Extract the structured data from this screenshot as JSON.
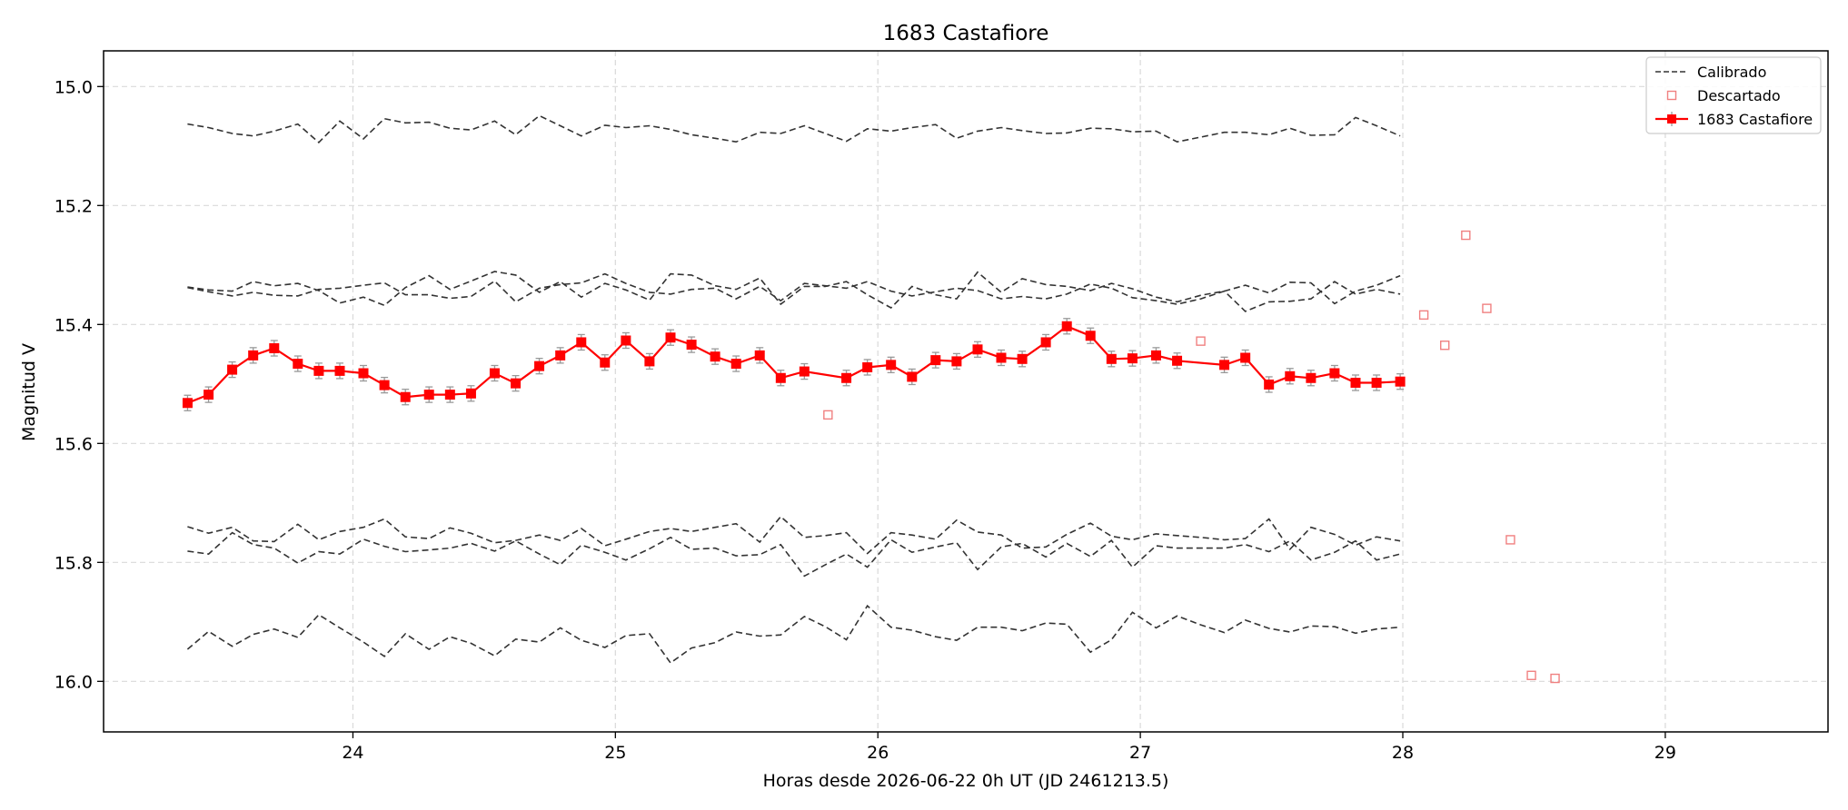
{
  "chart_data": {
    "type": "line",
    "title": "1683 Castafiore",
    "xlabel": "Horas desde 2026-06-22 0h UT (JD 2461213.5)",
    "ylabel": "Magnitud V",
    "xlim": [
      23.05,
      29.62
    ],
    "ylim": [
      16.085,
      14.94
    ],
    "y_inverted": true,
    "grid": true,
    "legend_position": "upper right",
    "xticks": [
      24,
      25,
      26,
      27,
      28,
      29
    ],
    "yticks": [
      15.0,
      15.2,
      15.4,
      15.6,
      15.8,
      16.0
    ],
    "ytick_labels": [
      "15.0",
      "15.2",
      "15.4",
      "15.6",
      "15.8",
      "16.0"
    ],
    "legend": [
      {
        "label": "Calibrado",
        "style": "dashed",
        "color": "#333333"
      },
      {
        "label": "Descartado",
        "style": "open-square",
        "color": "#f08080"
      },
      {
        "label": "1683 Castafiore",
        "style": "line-square",
        "color": "#ff0000"
      }
    ],
    "colors": {
      "target": "#ff0000",
      "calibrated": "#333333",
      "discarded": "#f08080",
      "errorbar": "#999999"
    },
    "target": {
      "name": "1683 Castafiore",
      "x": [
        23.37,
        23.45,
        23.54,
        23.62,
        23.7,
        23.79,
        23.87,
        23.95,
        24.04,
        24.12,
        24.2,
        24.29,
        24.37,
        24.45,
        24.54,
        24.62,
        24.71,
        24.79,
        24.87,
        24.96,
        25.04,
        25.13,
        25.21,
        25.29,
        25.38,
        25.46,
        25.55,
        25.63,
        25.72,
        25.88,
        25.96,
        26.05,
        26.13,
        26.22,
        26.3,
        26.38,
        26.47,
        26.55,
        26.64,
        26.72,
        26.81,
        26.89,
        26.97,
        27.06,
        27.14,
        27.32,
        27.4,
        27.49,
        27.57,
        27.65,
        27.74,
        27.82,
        27.9,
        27.99
      ],
      "y": [
        15.532,
        15.518,
        15.476,
        15.452,
        15.44,
        15.466,
        15.478,
        15.478,
        15.482,
        15.502,
        15.522,
        15.518,
        15.518,
        15.516,
        15.482,
        15.499,
        15.47,
        15.452,
        15.43,
        15.464,
        15.427,
        15.462,
        15.422,
        15.434,
        15.454,
        15.466,
        15.452,
        15.49,
        15.479,
        15.49,
        15.472,
        15.468,
        15.488,
        15.46,
        15.462,
        15.442,
        15.456,
        15.458,
        15.43,
        15.403,
        15.419,
        15.458,
        15.457,
        15.452,
        15.461,
        15.468,
        15.456,
        15.501,
        15.487,
        15.49,
        15.482,
        15.498,
        15.498,
        15.496
      ],
      "yerr": 0.013
    },
    "discarded": {
      "name": "Descartado",
      "x": [
        25.81,
        27.23,
        28.08,
        28.16,
        28.24,
        28.32,
        28.41,
        28.49,
        28.58
      ],
      "y": [
        15.552,
        15.428,
        15.384,
        15.435,
        15.25,
        15.373,
        15.762,
        15.99,
        15.995
      ]
    },
    "comparison": [
      {
        "name": "Calibrado",
        "x": [
          23.37,
          23.45,
          23.54,
          23.62,
          23.7,
          23.79,
          23.87,
          23.95,
          24.04,
          24.12,
          24.2,
          24.29,
          24.37,
          24.45,
          24.54,
          24.62,
          24.71,
          24.79,
          24.87,
          24.96,
          25.04,
          25.13,
          25.21,
          25.29,
          25.38,
          25.46,
          25.55,
          25.63,
          25.72,
          25.8,
          25.88,
          25.96,
          26.05,
          26.13,
          26.22,
          26.3,
          26.38,
          26.47,
          26.55,
          26.64,
          26.72,
          26.81,
          26.89,
          26.97,
          27.06,
          27.14,
          27.23,
          27.32,
          27.4,
          27.49,
          27.57,
          27.65,
          27.74,
          27.82,
          27.9,
          27.99
        ],
        "y": [
          15.063,
          15.069,
          15.079,
          15.083,
          15.075,
          15.063,
          15.094,
          15.058,
          15.088,
          15.054,
          15.061,
          15.06,
          15.07,
          15.073,
          15.058,
          15.081,
          15.049,
          15.066,
          15.083,
          15.065,
          15.069,
          15.066,
          15.072,
          15.081,
          15.087,
          15.093,
          15.077,
          15.079,
          15.066,
          15.079,
          15.092,
          15.071,
          15.075,
          15.069,
          15.064,
          15.087,
          15.075,
          15.069,
          15.074,
          15.079,
          15.078,
          15.07,
          15.071,
          15.076,
          15.075,
          15.093,
          15.085,
          15.077,
          15.077,
          15.081,
          15.07,
          15.082,
          15.081,
          15.052,
          15.066,
          15.083
        ]
      },
      {
        "name": "Calibrado",
        "x": [
          23.37,
          23.45,
          23.54,
          23.62,
          23.7,
          23.79,
          23.87,
          23.95,
          24.04,
          24.12,
          24.2,
          24.29,
          24.37,
          24.45,
          24.54,
          24.62,
          24.71,
          24.79,
          24.87,
          24.96,
          25.04,
          25.13,
          25.21,
          25.29,
          25.38,
          25.46,
          25.55,
          25.63,
          25.72,
          25.8,
          25.88,
          25.96,
          26.05,
          26.13,
          26.22,
          26.3,
          26.38,
          26.47,
          26.55,
          26.64,
          26.72,
          26.81,
          26.89,
          26.97,
          27.06,
          27.14,
          27.23,
          27.32,
          27.4,
          27.49,
          27.57,
          27.65,
          27.74,
          27.82,
          27.9,
          27.99
        ],
        "y": [
          15.337,
          15.342,
          15.344,
          15.328,
          15.335,
          15.331,
          15.343,
          15.364,
          15.354,
          15.368,
          15.338,
          15.318,
          15.341,
          15.327,
          15.311,
          15.317,
          15.346,
          15.328,
          15.354,
          15.331,
          15.342,
          15.359,
          15.315,
          15.317,
          15.335,
          15.341,
          15.322,
          15.366,
          15.336,
          15.336,
          15.328,
          15.35,
          15.372,
          15.336,
          15.35,
          15.357,
          15.312,
          15.346,
          15.323,
          15.333,
          15.336,
          15.343,
          15.331,
          15.34,
          15.354,
          15.362,
          15.351,
          15.344,
          15.334,
          15.347,
          15.329,
          15.33,
          15.365,
          15.344,
          15.334,
          15.318
        ]
      },
      {
        "name": "Calibrado",
        "x": [
          23.37,
          23.45,
          23.54,
          23.62,
          23.7,
          23.79,
          23.87,
          23.95,
          24.04,
          24.12,
          24.2,
          24.29,
          24.37,
          24.45,
          24.54,
          24.62,
          24.71,
          24.79,
          24.87,
          24.96,
          25.04,
          25.13,
          25.21,
          25.29,
          25.38,
          25.46,
          25.55,
          25.63,
          25.72,
          25.8,
          25.88,
          25.96,
          26.05,
          26.13,
          26.22,
          26.3,
          26.38,
          26.47,
          26.55,
          26.64,
          26.72,
          26.81,
          26.89,
          26.97,
          27.06,
          27.14,
          27.23,
          27.32,
          27.4,
          27.49,
          27.57,
          27.65,
          27.74,
          27.82,
          27.9,
          27.99
        ],
        "y": [
          15.338,
          15.345,
          15.352,
          15.346,
          15.351,
          15.352,
          15.341,
          15.339,
          15.334,
          15.33,
          15.35,
          15.35,
          15.356,
          15.353,
          15.327,
          15.362,
          15.339,
          15.333,
          15.33,
          15.315,
          15.331,
          15.346,
          15.349,
          15.341,
          15.339,
          15.357,
          15.336,
          15.36,
          15.331,
          15.335,
          15.339,
          15.328,
          15.344,
          15.352,
          15.345,
          15.339,
          15.343,
          15.357,
          15.353,
          15.357,
          15.349,
          15.332,
          15.339,
          15.355,
          15.36,
          15.366,
          15.357,
          15.344,
          15.378,
          15.362,
          15.361,
          15.357,
          15.328,
          15.349,
          15.341,
          15.349
        ]
      },
      {
        "name": "Calibrado",
        "x": [
          23.37,
          23.45,
          23.54,
          23.62,
          23.7,
          23.79,
          23.87,
          23.95,
          24.04,
          24.12,
          24.2,
          24.29,
          24.37,
          24.45,
          24.54,
          24.62,
          24.71,
          24.79,
          24.87,
          24.96,
          25.04,
          25.13,
          25.21,
          25.29,
          25.38,
          25.46,
          25.55,
          25.63,
          25.72,
          25.8,
          25.88,
          25.96,
          26.05,
          26.13,
          26.22,
          26.3,
          26.38,
          26.47,
          26.55,
          26.64,
          26.72,
          26.81,
          26.89,
          26.97,
          27.06,
          27.14,
          27.23,
          27.32,
          27.4,
          27.49,
          27.57,
          27.65,
          27.74,
          27.82,
          27.9,
          27.99
        ],
        "y": [
          15.74,
          15.751,
          15.741,
          15.764,
          15.765,
          15.736,
          15.762,
          15.748,
          15.741,
          15.727,
          15.757,
          15.76,
          15.742,
          15.751,
          15.767,
          15.763,
          15.754,
          15.763,
          15.743,
          15.772,
          15.761,
          15.748,
          15.743,
          15.748,
          15.741,
          15.735,
          15.766,
          15.723,
          15.758,
          15.755,
          15.75,
          15.785,
          15.75,
          15.754,
          15.761,
          15.729,
          15.749,
          15.754,
          15.776,
          15.774,
          15.753,
          15.734,
          15.756,
          15.762,
          15.752,
          15.755,
          15.758,
          15.762,
          15.76,
          15.727,
          15.778,
          15.741,
          15.753,
          15.771,
          15.757,
          15.764
        ]
      },
      {
        "name": "Calibrado",
        "x": [
          23.37,
          23.45,
          23.54,
          23.62,
          23.7,
          23.79,
          23.87,
          23.95,
          24.04,
          24.12,
          24.2,
          24.29,
          24.37,
          24.45,
          24.54,
          24.62,
          24.71,
          24.79,
          24.87,
          24.96,
          25.04,
          25.13,
          25.21,
          25.29,
          25.38,
          25.46,
          25.55,
          25.63,
          25.72,
          25.8,
          25.88,
          25.96,
          26.05,
          26.13,
          26.22,
          26.3,
          26.38,
          26.47,
          26.55,
          26.64,
          26.72,
          26.81,
          26.89,
          26.97,
          27.06,
          27.14,
          27.23,
          27.32,
          27.4,
          27.49,
          27.57,
          27.65,
          27.74,
          27.82,
          27.9,
          27.99
        ],
        "y": [
          15.781,
          15.786,
          15.75,
          15.77,
          15.776,
          15.801,
          15.782,
          15.786,
          15.761,
          15.773,
          15.782,
          15.779,
          15.776,
          15.768,
          15.781,
          15.764,
          15.786,
          15.804,
          15.771,
          15.783,
          15.796,
          15.777,
          15.758,
          15.778,
          15.776,
          15.789,
          15.787,
          15.77,
          15.823,
          15.804,
          15.786,
          15.808,
          15.762,
          15.783,
          15.774,
          15.767,
          15.812,
          15.774,
          15.768,
          15.791,
          15.768,
          15.79,
          15.763,
          15.808,
          15.772,
          15.776,
          15.776,
          15.776,
          15.77,
          15.782,
          15.764,
          15.796,
          15.783,
          15.764,
          15.796,
          15.786
        ]
      },
      {
        "name": "Calibrado",
        "x": [
          23.37,
          23.45,
          23.54,
          23.62,
          23.7,
          23.79,
          23.87,
          23.95,
          24.04,
          24.12,
          24.2,
          24.29,
          24.37,
          24.45,
          24.54,
          24.62,
          24.71,
          24.79,
          24.87,
          24.96,
          25.04,
          25.13,
          25.21,
          25.29,
          25.38,
          25.46,
          25.55,
          25.63,
          25.72,
          25.8,
          25.88,
          25.96,
          26.05,
          26.13,
          26.22,
          26.3,
          26.38,
          26.47,
          26.55,
          26.64,
          26.72,
          26.81,
          26.89,
          26.97,
          27.06,
          27.14,
          27.23,
          27.32,
          27.4,
          27.49,
          27.57,
          27.65,
          27.74,
          27.82,
          27.9,
          27.99
        ],
        "y": [
          15.946,
          15.916,
          15.941,
          15.921,
          15.912,
          15.926,
          15.888,
          15.91,
          15.934,
          15.958,
          15.92,
          15.946,
          15.925,
          15.936,
          15.957,
          15.929,
          15.934,
          15.91,
          15.931,
          15.943,
          15.923,
          15.92,
          15.969,
          15.944,
          15.935,
          15.917,
          15.924,
          15.922,
          15.891,
          15.908,
          15.93,
          15.873,
          15.909,
          15.914,
          15.925,
          15.931,
          15.909,
          15.909,
          15.915,
          15.902,
          15.904,
          15.951,
          15.93,
          15.884,
          15.91,
          15.89,
          15.905,
          15.918,
          15.897,
          15.911,
          15.917,
          15.907,
          15.908,
          15.919,
          15.912,
          15.909
        ]
      }
    ]
  }
}
